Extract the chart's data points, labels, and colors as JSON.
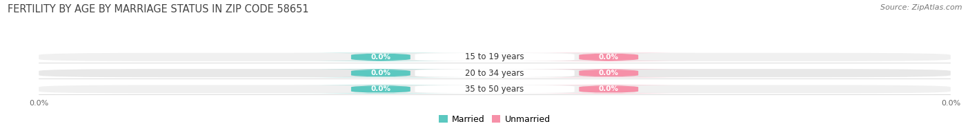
{
  "title": "FERTILITY BY AGE BY MARRIAGE STATUS IN ZIP CODE 58651",
  "source": "Source: ZipAtlas.com",
  "categories": [
    "15 to 19 years",
    "20 to 34 years",
    "35 to 50 years"
  ],
  "married_values": [
    0.0,
    0.0,
    0.0
  ],
  "unmarried_values": [
    0.0,
    0.0,
    0.0
  ],
  "married_color": "#5bc8c0",
  "unmarried_color": "#f690a8",
  "bar_bg_color": "#e8e8e8",
  "bar_bg_color2": "#f0f0f0",
  "label_married": "Married",
  "label_unmarried": "Unmarried",
  "title_fontsize": 10.5,
  "source_fontsize": 8,
  "tick_fontsize": 8,
  "cat_fontsize": 8.5,
  "pill_fontsize": 7.5,
  "legend_fontsize": 9,
  "background_color": "#ffffff",
  "text_color": "#444444",
  "source_color": "#777777",
  "tick_color": "#666666"
}
